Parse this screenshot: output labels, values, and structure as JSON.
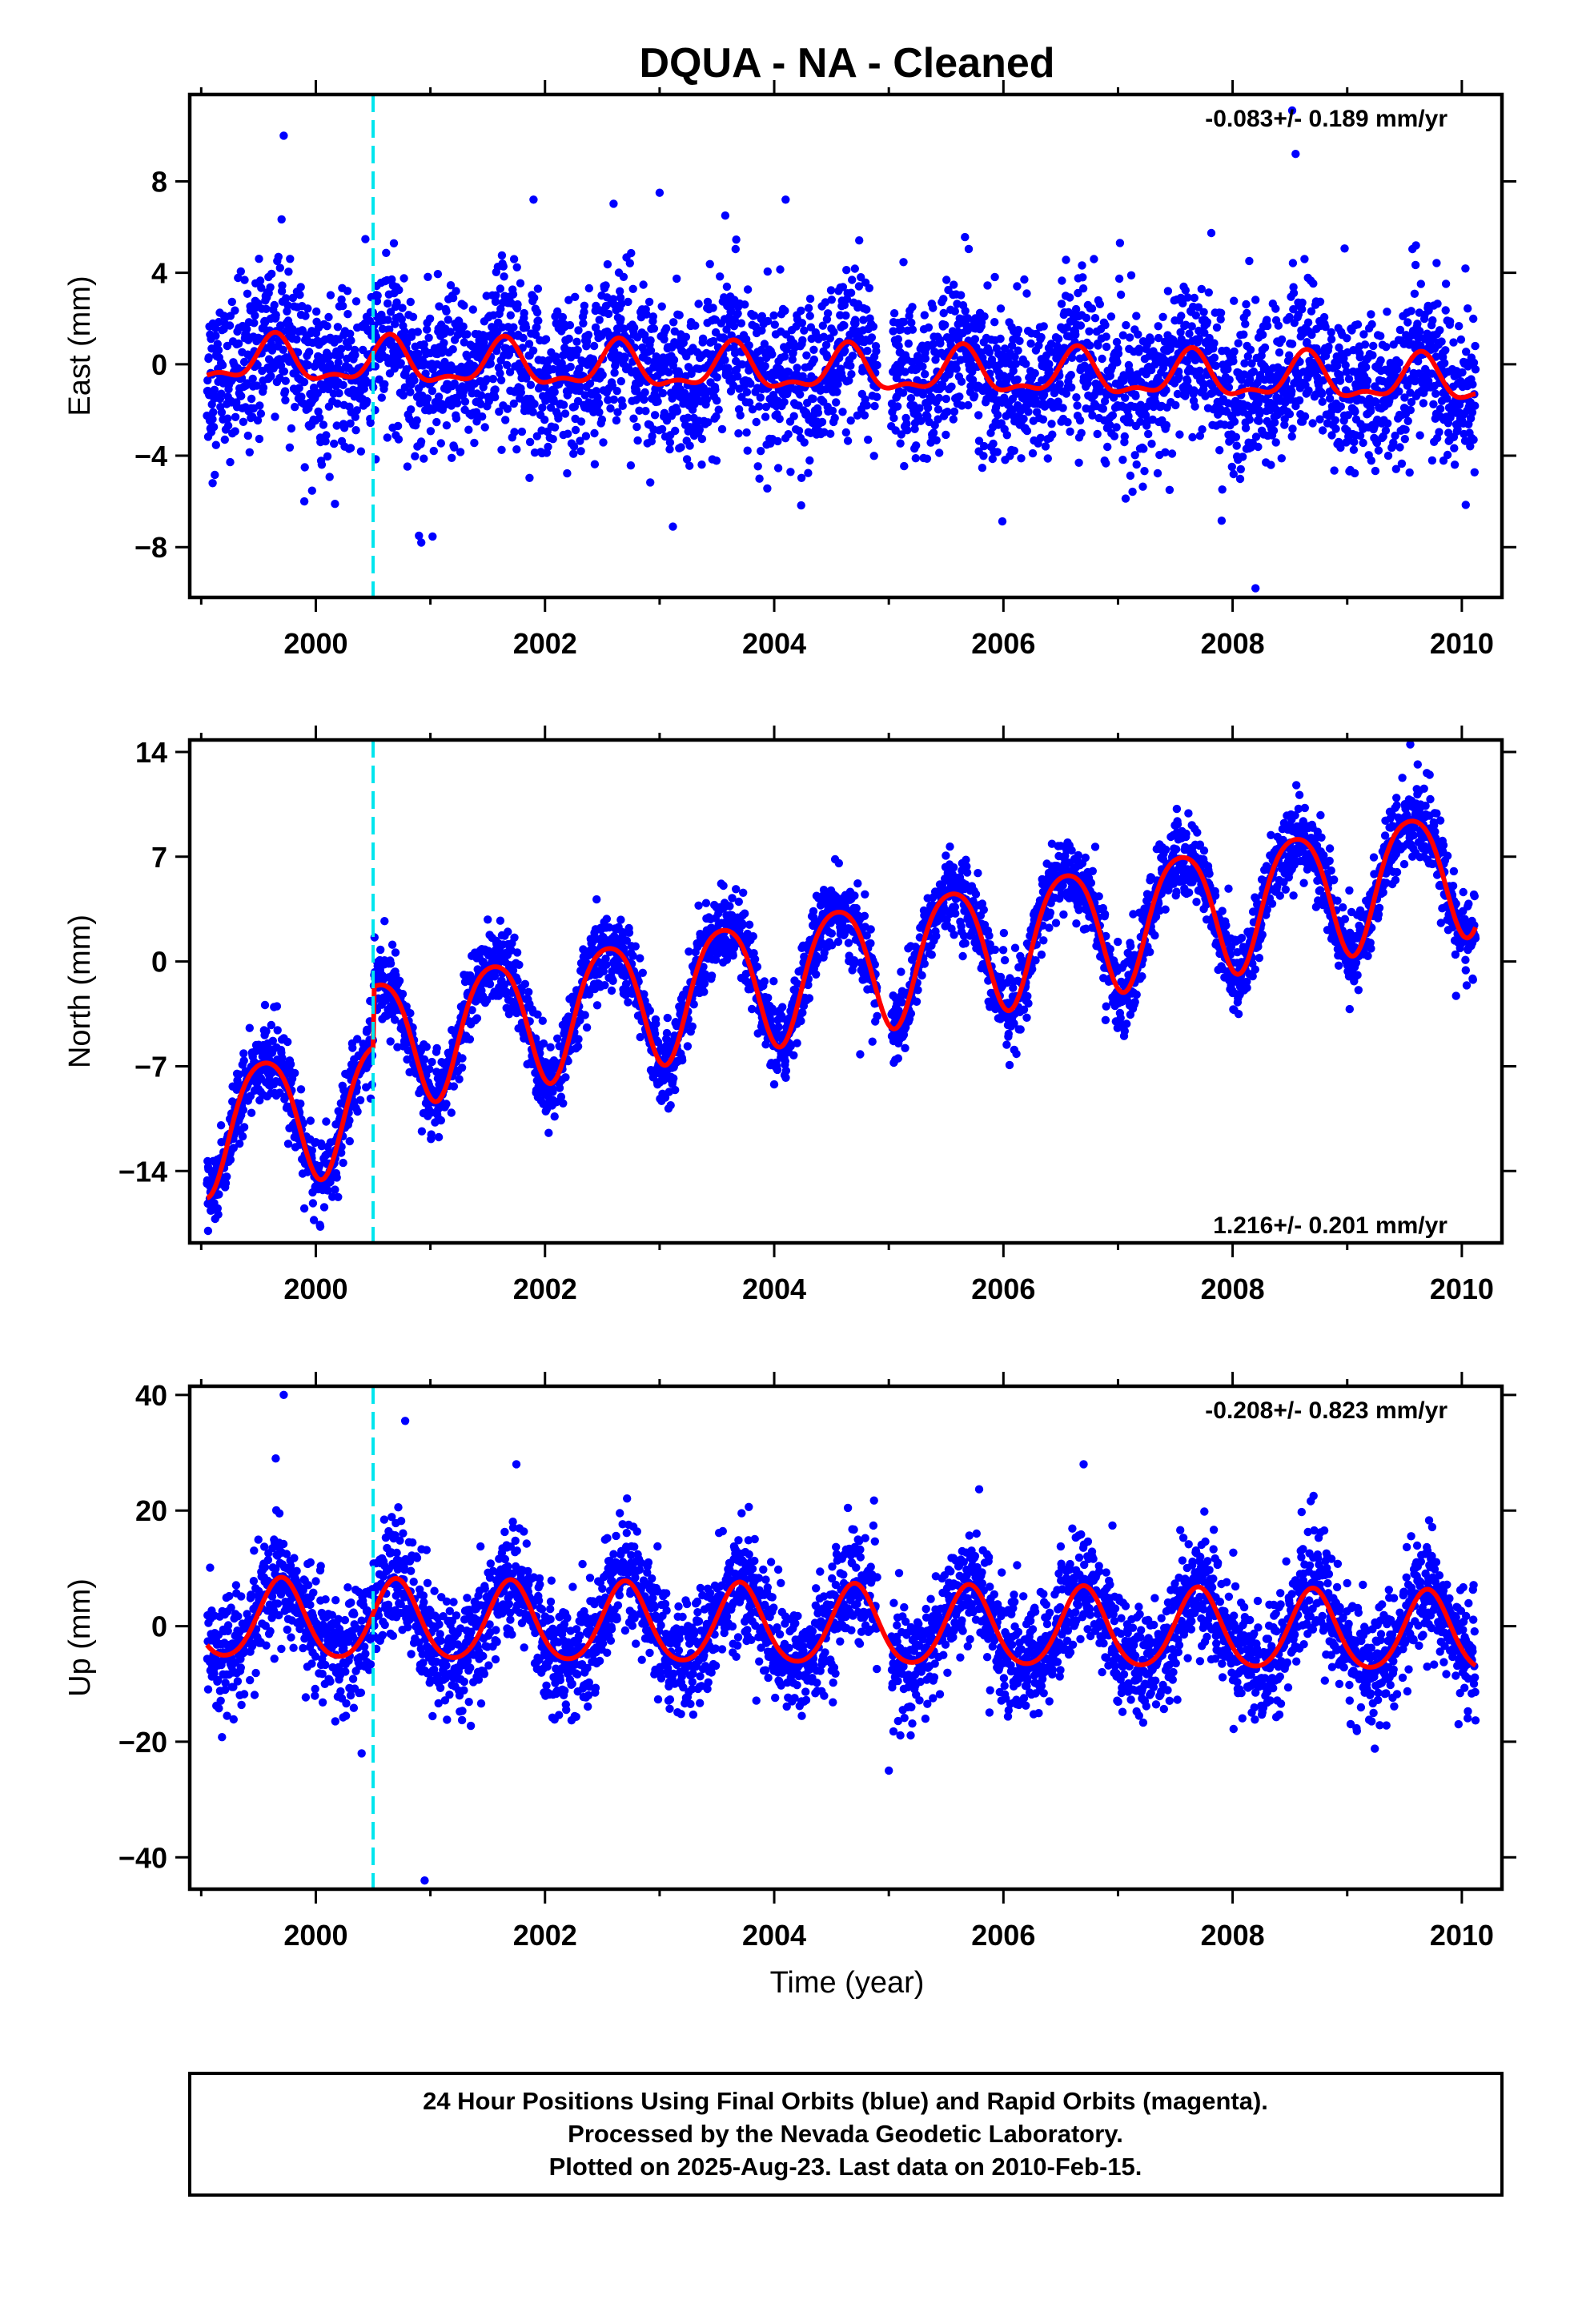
{
  "title": "DQUA  - NA - Cleaned",
  "xlabel": "Time (year)",
  "footer": [
    "24 Hour Positions Using Final Orbits (blue) and Rapid Orbits (magenta).",
    "Processed by the Nevada Geodetic Laboratory.",
    "Plotted on 2025-Aug-23. Last data on 2010-Feb-15."
  ],
  "colors": {
    "final": "#0000ff",
    "model": "#ff0000",
    "event": "#00e5ee",
    "frame": "#000000"
  },
  "chart_data": [
    {
      "type": "scatter",
      "name": "east",
      "ylabel": "East (mm)",
      "rate_text": "-0.083+/- 0.189 mm/yr",
      "rate_position": "top-right",
      "xlim": [
        1998.9,
        2010.35
      ],
      "ylim": [
        -10.2,
        11.8
      ],
      "xticks": [
        2000,
        2002,
        2004,
        2006,
        2008,
        2010
      ],
      "xtick_labels": [
        "2000",
        "2002",
        "2004",
        "2006",
        "2008",
        "2010"
      ],
      "yticks": [
        -8,
        -4,
        0,
        4,
        8
      ],
      "ytick_labels": [
        "−8",
        "−4",
        "0",
        "4",
        "8"
      ],
      "event_line_x": 2000.5,
      "data_start": 1999.05,
      "data_end": 2010.12,
      "data_gap": [
        2004.9,
        2005.02
      ],
      "model": {
        "offset": 0.15,
        "trend_per_year": -0.083,
        "annual_amplitude": 0.9,
        "annual_phase_year": 0.64,
        "semiannual_amplitude": 0.4,
        "semiannual_phase_year": 0.15
      },
      "scatter_sigma": 1.7,
      "outliers": [
        [
          1999.72,
          10.0
        ],
        [
          2008.52,
          11.1
        ],
        [
          2008.55,
          9.2
        ],
        [
          2000.9,
          -7.5
        ],
        [
          2000.92,
          -7.8
        ],
        [
          2008.2,
          -9.8
        ],
        [
          2001.9,
          7.2
        ],
        [
          2003.0,
          7.5
        ],
        [
          2004.1,
          7.2
        ],
        [
          1999.1,
          -5.2
        ],
        [
          1999.9,
          -6.0
        ],
        [
          2007.45,
          -5.5
        ],
        [
          2009.6,
          5.2
        ]
      ]
    },
    {
      "type": "scatter",
      "name": "north",
      "ylabel": "North (mm)",
      "rate_text": "1.216+/- 0.201 mm/yr",
      "rate_position": "bottom-right",
      "xlim": [
        1998.9,
        2010.35
      ],
      "ylim": [
        -18.8,
        14.8
      ],
      "xticks": [
        2000,
        2002,
        2004,
        2006,
        2008,
        2010
      ],
      "xtick_labels": [
        "2000",
        "2002",
        "2004",
        "2006",
        "2008",
        "2010"
      ],
      "yticks": [
        -14,
        -7,
        0,
        7,
        14
      ],
      "ytick_labels": [
        "−14",
        "−7",
        "0",
        "7",
        "14"
      ],
      "event_line_x": 2000.5,
      "data_start": 1999.05,
      "data_end": 2010.12,
      "data_gap": [
        2004.9,
        2005.02
      ],
      "model": {
        "offset": -11.0,
        "trend_per_year": 1.216,
        "annual_amplitude": 4.2,
        "annual_phase_year": 0.55,
        "semiannual_amplitude": 0.6,
        "semiannual_phase_year": 0.3,
        "step_at": 2000.5,
        "step_size": 4.0
      },
      "scatter_sigma": 1.3,
      "outliers": [
        [
          1999.06,
          -18.0
        ],
        [
          2009.55,
          14.5
        ],
        [
          2000.6,
          2.7
        ],
        [
          2001.5,
          2.8
        ],
        [
          2009.95,
          -2.3
        ],
        [
          2004.75,
          -6.2
        ],
        [
          1999.9,
          -16.5
        ]
      ]
    },
    {
      "type": "scatter",
      "name": "up",
      "ylabel": "Up (mm)",
      "rate_text": "-0.208+/- 0.823 mm/yr",
      "rate_position": "top-right",
      "xlim": [
        1998.9,
        2010.35
      ],
      "ylim": [
        -45.5,
        41.5
      ],
      "xticks": [
        2000,
        2002,
        2004,
        2006,
        2008,
        2010
      ],
      "xtick_labels": [
        "2000",
        "2002",
        "2004",
        "2006",
        "2008",
        "2010"
      ],
      "yticks": [
        -40,
        -20,
        0,
        20,
        40
      ],
      "ytick_labels": [
        "−40",
        "−20",
        "0",
        "20",
        "40"
      ],
      "event_line_x": 2000.5,
      "data_start": 1999.05,
      "data_end": 2010.12,
      "data_gap": [
        2004.9,
        2005.02
      ],
      "model": {
        "offset": 1.0,
        "trend_per_year": -0.208,
        "annual_amplitude": 6.8,
        "annual_phase_year": 0.7,
        "semiannual_amplitude": 0.8,
        "semiannual_phase_year": 0.2
      },
      "scatter_sigma": 5.0,
      "outliers": [
        [
          1999.72,
          40.0
        ],
        [
          2000.78,
          35.5
        ],
        [
          2000.95,
          -44.0
        ],
        [
          2000.4,
          -22.0
        ],
        [
          2005.0,
          -25.0
        ],
        [
          2001.75,
          28.0
        ],
        [
          1999.65,
          29.0
        ],
        [
          2006.7,
          28.0
        ]
      ]
    }
  ]
}
